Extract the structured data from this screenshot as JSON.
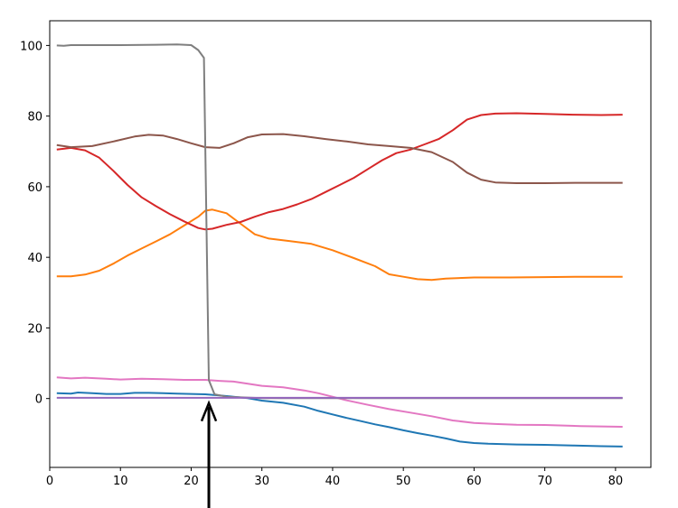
{
  "chart_data": {
    "type": "line",
    "title": "",
    "xlabel": "",
    "ylabel": "",
    "xlim": [
      0,
      85
    ],
    "ylim": [
      -19.5,
      107
    ],
    "grid": false,
    "x_ticks": [
      0,
      10,
      20,
      30,
      40,
      50,
      60,
      70,
      80
    ],
    "x_tick_labels": [
      "0",
      "10",
      "20",
      "30",
      "40",
      "50",
      "60",
      "70",
      "80"
    ],
    "y_ticks": [
      0,
      20,
      40,
      60,
      80,
      100
    ],
    "y_tick_labels": [
      "0",
      "20",
      "40",
      "60",
      "80",
      "100"
    ],
    "series": [
      {
        "color": "#1f77b4",
        "points": [
          [
            1,
            1.5
          ],
          [
            3,
            1.4
          ],
          [
            4,
            1.7
          ],
          [
            6,
            1.5
          ],
          [
            8,
            1.3
          ],
          [
            10,
            1.3
          ],
          [
            12,
            1.6
          ],
          [
            14,
            1.6
          ],
          [
            16,
            1.5
          ],
          [
            18,
            1.4
          ],
          [
            20,
            1.3
          ],
          [
            22,
            1.2
          ],
          [
            24,
            0.9
          ],
          [
            26,
            0.5
          ],
          [
            28,
            0.1
          ],
          [
            30,
            -0.6
          ],
          [
            33,
            -1.2
          ],
          [
            36,
            -2.3
          ],
          [
            38,
            -3.5
          ],
          [
            40,
            -4.5
          ],
          [
            42,
            -5.5
          ],
          [
            44,
            -6.4
          ],
          [
            46,
            -7.3
          ],
          [
            48,
            -8.1
          ],
          [
            50,
            -9
          ],
          [
            52,
            -9.8
          ],
          [
            54,
            -10.5
          ],
          [
            56,
            -11.3
          ],
          [
            58,
            -12.2
          ],
          [
            60,
            -12.6
          ],
          [
            62,
            -12.8
          ],
          [
            66,
            -13
          ],
          [
            70,
            -13.1
          ],
          [
            74,
            -13.3
          ],
          [
            78,
            -13.5
          ],
          [
            81,
            -13.6
          ]
        ]
      },
      {
        "color": "#ff7f0e",
        "points": [
          [
            1,
            34.6
          ],
          [
            3,
            34.6
          ],
          [
            5,
            35.1
          ],
          [
            7,
            36.2
          ],
          [
            9,
            38.2
          ],
          [
            11,
            40.5
          ],
          [
            13,
            42.5
          ],
          [
            15,
            44.5
          ],
          [
            17,
            46.5
          ],
          [
            19,
            49
          ],
          [
            21,
            51.5
          ],
          [
            22,
            53.2
          ],
          [
            23,
            53.5
          ],
          [
            25,
            52.5
          ],
          [
            27,
            49.5
          ],
          [
            29,
            46.5
          ],
          [
            31,
            45.3
          ],
          [
            34,
            44.6
          ],
          [
            37,
            43.8
          ],
          [
            40,
            42
          ],
          [
            43,
            39.8
          ],
          [
            46,
            37.5
          ],
          [
            48,
            35.2
          ],
          [
            50,
            34.5
          ],
          [
            52,
            33.8
          ],
          [
            54,
            33.6
          ],
          [
            56,
            34
          ],
          [
            60,
            34.3
          ],
          [
            65,
            34.3
          ],
          [
            70,
            34.4
          ],
          [
            75,
            34.5
          ],
          [
            81,
            34.5
          ]
        ]
      },
      {
        "color": "#d62728",
        "points": [
          [
            1,
            70.5
          ],
          [
            3,
            71
          ],
          [
            5,
            70.3
          ],
          [
            7,
            68.2
          ],
          [
            9,
            64.5
          ],
          [
            11,
            60.5
          ],
          [
            13,
            57
          ],
          [
            15,
            54.5
          ],
          [
            17,
            52.2
          ],
          [
            19,
            50.2
          ],
          [
            21,
            48.3
          ],
          [
            22,
            47.9
          ],
          [
            23,
            48.1
          ],
          [
            25,
            49.2
          ],
          [
            27,
            50
          ],
          [
            29,
            51.5
          ],
          [
            31,
            52.8
          ],
          [
            33,
            53.7
          ],
          [
            35,
            55
          ],
          [
            37,
            56.5
          ],
          [
            39,
            58.5
          ],
          [
            41,
            60.5
          ],
          [
            43,
            62.5
          ],
          [
            45,
            65
          ],
          [
            47,
            67.5
          ],
          [
            49,
            69.5
          ],
          [
            51,
            70.5
          ],
          [
            53,
            72
          ],
          [
            55,
            73.5
          ],
          [
            57,
            76
          ],
          [
            59,
            79
          ],
          [
            61,
            80.3
          ],
          [
            63,
            80.7
          ],
          [
            66,
            80.8
          ],
          [
            70,
            80.6
          ],
          [
            74,
            80.4
          ],
          [
            78,
            80.3
          ],
          [
            81,
            80.4
          ]
        ]
      },
      {
        "color": "#8c564b",
        "points": [
          [
            1,
            71.8
          ],
          [
            3,
            71.2
          ],
          [
            6,
            71.5
          ],
          [
            9,
            72.8
          ],
          [
            12,
            74.2
          ],
          [
            14,
            74.7
          ],
          [
            16,
            74.5
          ],
          [
            18,
            73.5
          ],
          [
            20,
            72.3
          ],
          [
            22,
            71.2
          ],
          [
            24,
            71
          ],
          [
            26,
            72.3
          ],
          [
            28,
            74
          ],
          [
            30,
            74.8
          ],
          [
            33,
            74.9
          ],
          [
            36,
            74.3
          ],
          [
            39,
            73.5
          ],
          [
            42,
            72.8
          ],
          [
            45,
            72
          ],
          [
            48,
            71.5
          ],
          [
            51,
            71
          ],
          [
            54,
            69.8
          ],
          [
            57,
            67
          ],
          [
            59,
            64
          ],
          [
            61,
            62
          ],
          [
            63,
            61.2
          ],
          [
            66,
            61
          ],
          [
            70,
            61
          ],
          [
            75,
            61.1
          ],
          [
            81,
            61.1
          ]
        ]
      },
      {
        "color": "#e377c2",
        "points": [
          [
            1,
            6
          ],
          [
            3,
            5.7
          ],
          [
            5,
            5.9
          ],
          [
            8,
            5.6
          ],
          [
            10,
            5.4
          ],
          [
            13,
            5.6
          ],
          [
            16,
            5.5
          ],
          [
            19,
            5.3
          ],
          [
            22,
            5.3
          ],
          [
            24,
            5
          ],
          [
            26,
            4.8
          ],
          [
            28,
            4.2
          ],
          [
            30,
            3.6
          ],
          [
            33,
            3.2
          ],
          [
            36,
            2.3
          ],
          [
            38,
            1.5
          ],
          [
            40,
            0.5
          ],
          [
            42,
            -0.5
          ],
          [
            45,
            -1.8
          ],
          [
            48,
            -3
          ],
          [
            51,
            -4
          ],
          [
            54,
            -5
          ],
          [
            57,
            -6.2
          ],
          [
            60,
            -6.9
          ],
          [
            63,
            -7.2
          ],
          [
            66,
            -7.4
          ],
          [
            70,
            -7.5
          ],
          [
            75,
            -7.8
          ],
          [
            81,
            -8
          ]
        ]
      },
      {
        "color": "#7f7f7f",
        "points": [
          [
            1,
            100
          ],
          [
            2,
            99.9
          ],
          [
            3,
            100.1
          ],
          [
            10,
            100.1
          ],
          [
            15,
            100.2
          ],
          [
            18,
            100.3
          ],
          [
            20,
            100.1
          ],
          [
            21,
            98.7
          ],
          [
            21.8,
            96.5
          ],
          [
            22.5,
            5.2
          ],
          [
            23.3,
            1.2
          ],
          [
            25,
            0.5
          ],
          [
            30,
            0.1
          ],
          [
            40,
            0.1
          ],
          [
            60,
            0.1
          ],
          [
            81,
            0.1
          ]
        ]
      },
      {
        "color": "#9467bd",
        "points": [
          [
            1,
            0.2
          ],
          [
            81,
            0.2
          ]
        ]
      }
    ],
    "annotation": {
      "type": "arrow",
      "x": 22.5,
      "y_tip": 0,
      "color": "#000000"
    }
  }
}
